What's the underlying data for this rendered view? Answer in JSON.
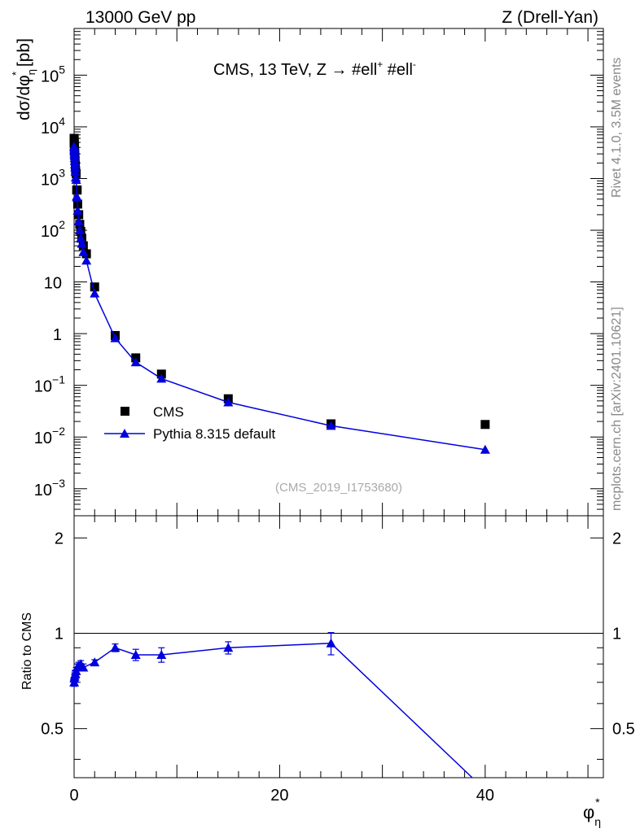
{
  "header": {
    "left": "13000 GeV pp",
    "right": "Z (Drell-Yan)"
  },
  "side_labels": {
    "rivet": "Rivet 4.1.0,  3.5M events",
    "source": "mcplots.cern.ch [arXiv:2401.10621]"
  },
  "chart_data": [
    {
      "type": "scatter",
      "panel": "main",
      "title": "CMS, 13 TeV, Z →  #ell⁺ #ell⁻",
      "title_parts": {
        "main": "CMS, 13 TeV, Z →  #ell",
        "sup1": "+",
        "mid": " #ell",
        "sup2": "-"
      },
      "ylabel": "dσ/dφ*η [pb]",
      "ylabel_parts": {
        "main": "dσ/dφ",
        "sub": "η",
        "sup": "*",
        "unit": " [pb]"
      },
      "yscale": "log",
      "ylim": [
        0.0003,
        800000
      ],
      "xlim": [
        0,
        51.5
      ],
      "ytick_labels": [
        {
          "value": 0.001,
          "mant": "10",
          "exp": "−3"
        },
        {
          "value": 0.01,
          "mant": "10",
          "exp": "−2"
        },
        {
          "value": 0.1,
          "mant": "10",
          "exp": "−1"
        },
        {
          "value": 1,
          "mant": "1",
          "exp": ""
        },
        {
          "value": 10,
          "mant": "10",
          "exp": ""
        },
        {
          "value": 100,
          "mant": "10",
          "exp": "2"
        },
        {
          "value": 1000,
          "mant": "10",
          "exp": "3"
        },
        {
          "value": 10000,
          "mant": "10",
          "exp": "4"
        },
        {
          "value": 100000,
          "mant": "10",
          "exp": "5"
        }
      ],
      "watermark": "(CMS_2019_I1753680)",
      "legend": {
        "placement": "bottom-left",
        "entries": [
          "CMS",
          "Pythia 8.315 default"
        ]
      },
      "series": [
        {
          "name": "CMS",
          "marker": "square",
          "color": "#000000",
          "x": [
            0.002,
            0.006,
            0.01,
            0.015,
            0.02,
            0.03,
            0.04,
            0.05,
            0.065,
            0.08,
            0.1,
            0.125,
            0.15,
            0.2,
            0.25,
            0.3,
            0.35,
            0.45,
            0.55,
            0.65,
            0.75,
            0.9,
            1.2,
            2.0,
            4.0,
            6.0,
            8.5,
            15.0,
            25.0,
            40.0
          ],
          "y": [
            6000,
            5600,
            5200,
            4900,
            4600,
            4200,
            3800,
            3400,
            3000,
            2600,
            2200,
            1800,
            1400,
            1250,
            600,
            600,
            320,
            200,
            130,
            95,
            70,
            50,
            35,
            8.0,
            0.92,
            0.34,
            0.165,
            0.055,
            0.018,
            0.0175
          ]
        },
        {
          "name": "Pythia 8.315 default",
          "marker": "triangle",
          "color": "#0000dd",
          "x": [
            0.002,
            0.006,
            0.01,
            0.015,
            0.02,
            0.03,
            0.04,
            0.05,
            0.065,
            0.08,
            0.1,
            0.125,
            0.15,
            0.2,
            0.25,
            0.3,
            0.35,
            0.45,
            0.55,
            0.65,
            0.75,
            0.9,
            1.2,
            2.0,
            4.0,
            6.0,
            8.5,
            15.0,
            25.0,
            40.0
          ],
          "y": [
            4200,
            4000,
            3700,
            3500,
            3300,
            3000,
            2800,
            2500,
            2200,
            1900,
            1650,
            1350,
            1050,
            950,
            450,
            430,
            240,
            150,
            100,
            70,
            55,
            38,
            26,
            6.0,
            0.82,
            0.28,
            0.135,
            0.047,
            0.0165,
            0.0057
          ]
        }
      ]
    },
    {
      "type": "line",
      "panel": "ratio",
      "ylabel": "Ratio to CMS",
      "xlabel": "φ*η",
      "xlabel_parts": {
        "main": "φ",
        "sub": "η",
        "sup": "*"
      },
      "xlim": [
        0,
        51.5
      ],
      "ylim": [
        0.35,
        2.35
      ],
      "yscale": "log",
      "reference_line": 1,
      "xtick_labels": [
        {
          "value": 0,
          "label": "0"
        },
        {
          "value": 20,
          "label": "20"
        },
        {
          "value": 40,
          "label": "40"
        }
      ],
      "ytick_labels": [
        {
          "value": 0.5,
          "label": "0.5"
        },
        {
          "value": 1,
          "label": "1"
        },
        {
          "value": 2,
          "label": "2"
        }
      ],
      "series": [
        {
          "name": "Pythia 8.315 default / CMS",
          "color": "#0000dd",
          "x": [
            0.01,
            0.03,
            0.05,
            0.08,
            0.125,
            0.2,
            0.3,
            0.45,
            0.65,
            0.9,
            2.0,
            4.0,
            6.0,
            8.5,
            15.0,
            25.0,
            40.0
          ],
          "y": [
            0.7,
            0.72,
            0.73,
            0.74,
            0.745,
            0.76,
            0.78,
            0.79,
            0.8,
            0.78,
            0.81,
            0.9,
            0.855,
            0.855,
            0.9,
            0.93,
            0.32
          ],
          "err": [
            0.02,
            0.02,
            0.02,
            0.02,
            0.02,
            0.02,
            0.02,
            0.02,
            0.02,
            0.02,
            0.015,
            0.025,
            0.035,
            0.045,
            0.04,
            0.075,
            0.0
          ]
        }
      ]
    }
  ]
}
